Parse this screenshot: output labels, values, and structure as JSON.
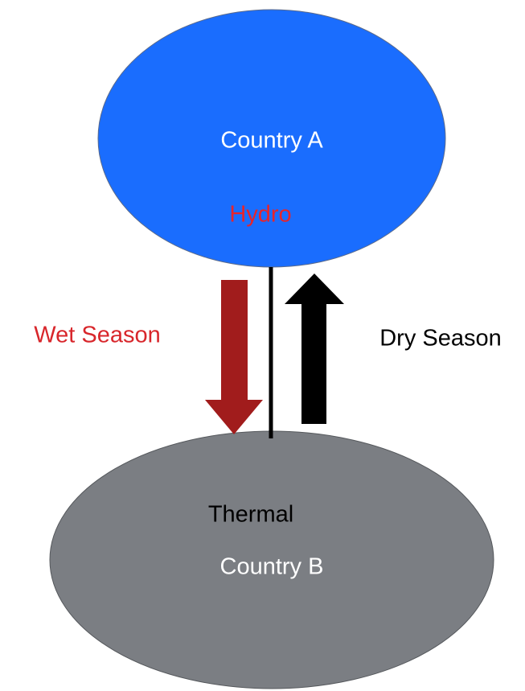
{
  "nodes": [
    {
      "label": "Country A",
      "sublabel": "Hydro"
    },
    {
      "label": "Country B",
      "sublabel": "Thermal"
    }
  ],
  "edges": [
    {
      "label": "Wet Season"
    },
    {
      "label": "Dry Season"
    }
  ]
}
